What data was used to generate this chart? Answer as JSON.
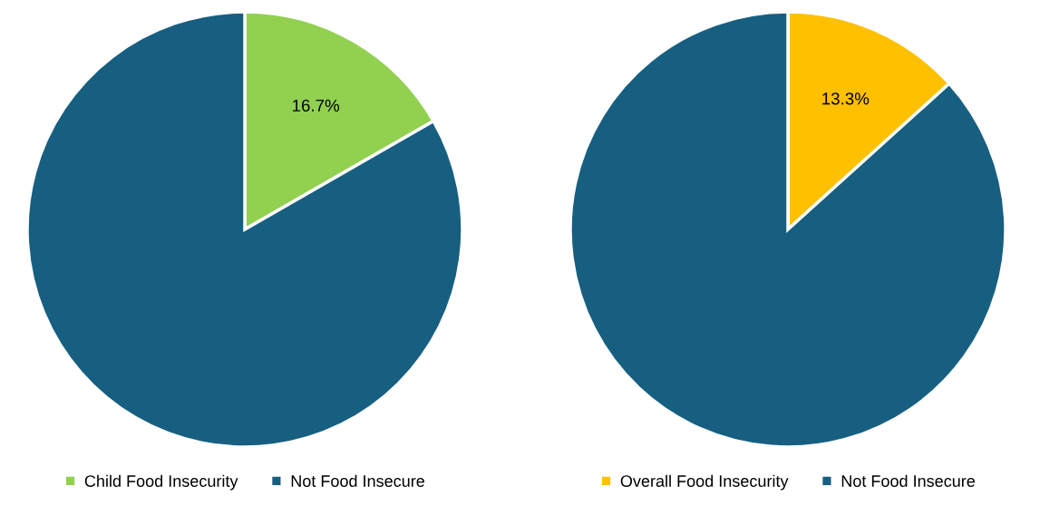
{
  "chart_data": [
    {
      "type": "pie",
      "categories": [
        "Child Food Insecurity",
        "Not Food Insecure"
      ],
      "values": [
        16.7,
        83.3
      ],
      "colors": [
        "#92d050",
        "#175f80"
      ],
      "value_labels": [
        "16.7%",
        null
      ],
      "legend": "bottom"
    },
    {
      "type": "pie",
      "categories": [
        "Overall Food Insecurity",
        "Not Food Insecure"
      ],
      "values": [
        13.3,
        86.7
      ],
      "colors": [
        "#ffc000",
        "#175f80"
      ],
      "value_labels": [
        "13.3%",
        null
      ],
      "legend": "bottom"
    }
  ]
}
